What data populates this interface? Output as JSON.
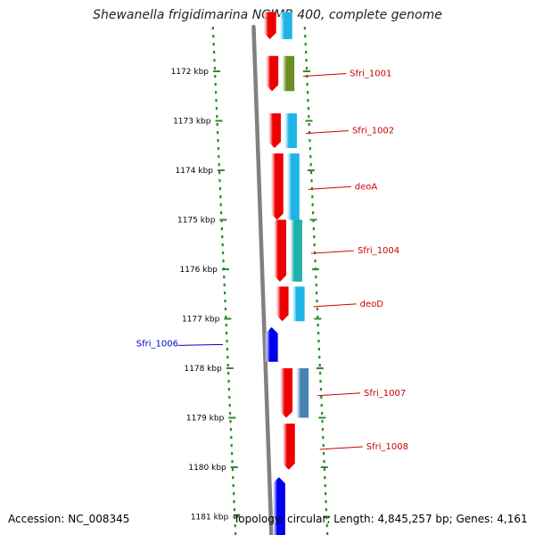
{
  "title": "Shewanella frigidimarina NCIMB 400, complete genome",
  "footer": {
    "accession": "Accession: NC_008345",
    "topology": "Topology: circular; Length: 4,845,257 bp; Genes: 4,161"
  },
  "colors": {
    "forward_label": "#cc0000",
    "reverse_label": "#0000cc",
    "backbone": "#808080",
    "tick": "#2e8b2e"
  },
  "ticks": [
    {
      "label": "1172 kbp",
      "kbp": 1172
    },
    {
      "label": "1173 kbp",
      "kbp": 1173
    },
    {
      "label": "1174 kbp",
      "kbp": 1174
    },
    {
      "label": "1175 kbp",
      "kbp": 1175
    },
    {
      "label": "1176 kbp",
      "kbp": 1176
    },
    {
      "label": "1177 kbp",
      "kbp": 1177
    },
    {
      "label": "1178 kbp",
      "kbp": 1178
    },
    {
      "label": "1179 kbp",
      "kbp": 1179
    },
    {
      "label": "1180 kbp",
      "kbp": 1180
    },
    {
      "label": "1181 kbp",
      "kbp": 1181
    }
  ],
  "genes": [
    {
      "name": "Sfri_1001",
      "strand": "forward",
      "start_kbp": 1171.69,
      "end_kbp": 1172.4,
      "color": "#ee0000",
      "track2_color": "#6b8e23",
      "labeled": true
    },
    {
      "name": "Sfri_1002",
      "strand": "forward",
      "start_kbp": 1172.85,
      "end_kbp": 1173.55,
      "color": "#ee0000",
      "track2_color": "#1eb4e6",
      "labeled": true
    },
    {
      "name": "deoA",
      "strand": "forward",
      "start_kbp": 1173.66,
      "end_kbp": 1175.0,
      "color": "#ee0000",
      "track2_color": "#1eb4e6",
      "labeled": true
    },
    {
      "name": "Sfri_1004",
      "strand": "forward",
      "start_kbp": 1175.0,
      "end_kbp": 1176.25,
      "color": "#ee0000",
      "track2_color": "#20b2aa",
      "labeled": true
    },
    {
      "name": "deoD",
      "strand": "forward",
      "start_kbp": 1176.35,
      "end_kbp": 1177.05,
      "color": "#ee0000",
      "track2_color": "#1eb4e6",
      "labeled": true
    },
    {
      "name": "Sfri_1006",
      "strand": "reverse",
      "start_kbp": 1177.17,
      "end_kbp": 1177.87,
      "color": "#0000ee",
      "labeled": true
    },
    {
      "name": "Sfri_1007",
      "strand": "forward",
      "start_kbp": 1178.0,
      "end_kbp": 1179.0,
      "color": "#ee0000",
      "track2_color": "#4682b4",
      "labeled": true
    },
    {
      "name": "Sfri_1008",
      "strand": "forward",
      "start_kbp": 1179.12,
      "end_kbp": 1180.05,
      "color": "#ee0000",
      "labeled": true
    },
    {
      "name": "",
      "strand": "forward",
      "start_kbp": 1170.8,
      "end_kbp": 1171.35,
      "color": "#ee0000",
      "track2_color": "#1eb4e6",
      "labeled": false
    },
    {
      "name": "",
      "strand": "reverse",
      "start_kbp": 1180.2,
      "end_kbp": 1181.5,
      "color": "#0000ee",
      "labeled": false
    }
  ]
}
